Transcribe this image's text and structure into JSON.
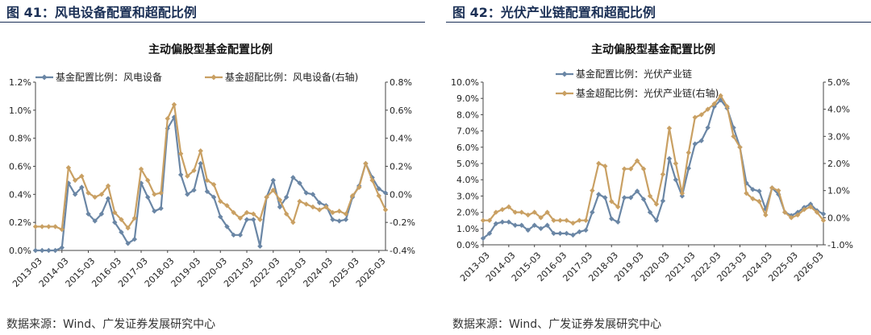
{
  "figures": [
    {
      "figure_title": "图 41：风电设备配置和超配比例",
      "source": "数据来源：Wind、广发证券发展研究中心",
      "chart_data": {
        "type": "line",
        "title": "主动偏股型基金配置比例",
        "x_labels": [
          "2013-03",
          "2014-03",
          "2015-03",
          "2016-03",
          "2017-03",
          "2018-03",
          "2019-03",
          "2020-03",
          "2021-03",
          "2022-03",
          "2023-03",
          "2024-03",
          "2025-03",
          "2026-03"
        ],
        "left_axis": {
          "min": 0,
          "max": 1.2,
          "step": 0.2,
          "unit": "%",
          "decimals": 1
        },
        "right_axis": {
          "min": -0.4,
          "max": 0.8,
          "step": 0.2,
          "unit": "%",
          "decimals": 1
        },
        "series": [
          {
            "name": "基金配置比例：风电设备",
            "axis": "left",
            "color": "#6a86a5",
            "values": [
              0.0,
              0.0,
              0.0,
              0.0,
              0.02,
              0.48,
              0.4,
              0.45,
              0.26,
              0.21,
              0.26,
              0.37,
              0.2,
              0.13,
              0.05,
              0.08,
              0.48,
              0.38,
              0.28,
              0.3,
              0.87,
              0.95,
              0.54,
              0.4,
              0.43,
              0.62,
              0.42,
              0.38,
              0.24,
              0.17,
              0.11,
              0.11,
              0.22,
              0.22,
              0.03,
              0.38,
              0.5,
              0.31,
              0.38,
              0.52,
              0.48,
              0.41,
              0.4,
              0.34,
              0.32,
              0.22,
              0.21,
              0.22,
              0.38,
              0.46,
              0.62,
              0.52,
              0.44,
              0.41
            ]
          },
          {
            "name": "基金超配比例：风电设备(右轴)",
            "axis": "right",
            "color": "#c9a063",
            "values": [
              -0.23,
              -0.23,
              -0.23,
              -0.23,
              -0.25,
              0.19,
              0.1,
              0.13,
              0.01,
              -0.02,
              0.0,
              0.06,
              -0.13,
              -0.18,
              -0.24,
              -0.17,
              0.18,
              0.1,
              0.0,
              0.01,
              0.54,
              0.64,
              0.29,
              0.13,
              0.17,
              0.31,
              0.1,
              0.07,
              -0.05,
              -0.08,
              -0.13,
              -0.17,
              -0.13,
              -0.14,
              -0.18,
              -0.02,
              0.03,
              -0.04,
              -0.14,
              -0.2,
              -0.05,
              -0.07,
              -0.09,
              -0.11,
              -0.09,
              -0.13,
              -0.12,
              -0.14,
              -0.01,
              0.05,
              0.22,
              0.1,
              -0.01,
              -0.11
            ]
          }
        ]
      }
    },
    {
      "figure_title": "图 42：光伏产业链配置和超配比例",
      "source": "数据来源：Wind、广发证券发展研究中心",
      "chart_data": {
        "type": "line",
        "title": "主动偏股型基金配置比例",
        "x_labels": [
          "2013-03",
          "2014-03",
          "2015-03",
          "2016-03",
          "2017-03",
          "2018-03",
          "2019-03",
          "2020-03",
          "2021-03",
          "2022-03",
          "2023-03",
          "2024-03",
          "2025-03",
          "2026-03"
        ],
        "left_axis": {
          "min": 0,
          "max": 10,
          "step": 1,
          "unit": "%",
          "decimals": 1
        },
        "right_axis": {
          "min": -1,
          "max": 5,
          "step": 1,
          "unit": "%",
          "decimals": 1
        },
        "series": [
          {
            "name": "基金配置比例：光伏产业链",
            "axis": "left",
            "color": "#6a86a5",
            "values": [
              0.4,
              0.7,
              1.3,
              1.4,
              1.4,
              1.2,
              1.2,
              0.9,
              1.2,
              1.0,
              1.2,
              0.7,
              0.7,
              0.7,
              0.6,
              0.8,
              0.9,
              2.0,
              3.1,
              2.9,
              1.6,
              1.4,
              2.9,
              2.9,
              3.3,
              2.8,
              2.0,
              1.5,
              2.7,
              5.3,
              4.0,
              3.0,
              4.7,
              6.2,
              6.4,
              7.2,
              8.5,
              8.9,
              8.4,
              7.2,
              6.0,
              3.8,
              3.4,
              3.3,
              2.2,
              3.5,
              3.1,
              2.0,
              1.8,
              2.0,
              2.3,
              2.5,
              2.1,
              1.9
            ]
          },
          {
            "name": "基金超配比例：光伏产业链(右轴)",
            "axis": "right",
            "color": "#c9a063",
            "values": [
              -0.1,
              -0.1,
              0.2,
              0.3,
              0.4,
              0.2,
              0.2,
              0.1,
              0.2,
              0.0,
              0.2,
              -0.1,
              -0.1,
              -0.1,
              -0.2,
              -0.1,
              -0.1,
              1.0,
              2.0,
              1.9,
              0.6,
              0.4,
              1.8,
              1.8,
              2.1,
              1.8,
              0.8,
              0.5,
              1.6,
              3.3,
              2.0,
              0.9,
              2.4,
              3.7,
              3.8,
              4.0,
              4.2,
              4.5,
              4.1,
              3.0,
              2.6,
              0.9,
              0.7,
              0.6,
              0.1,
              1.1,
              1.0,
              0.2,
              0.0,
              0.1,
              0.3,
              0.4,
              0.2,
              -0.1
            ]
          }
        ]
      }
    }
  ]
}
